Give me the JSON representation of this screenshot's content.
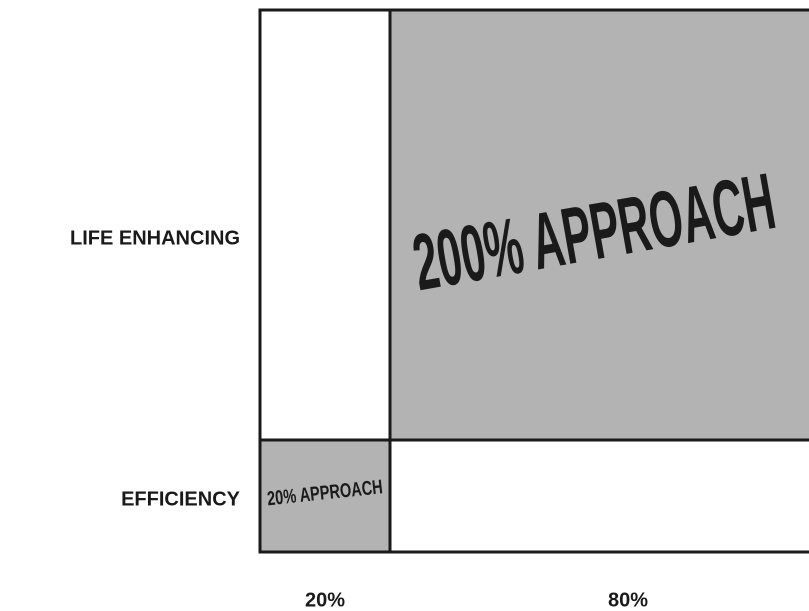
{
  "rows": [
    "LIFE ENHANCING",
    "EFFICIENCY"
  ],
  "columns": [
    "20%",
    "80%"
  ],
  "cells": {
    "large": "200% APPROACH",
    "small": "20% APPROACH"
  }
}
